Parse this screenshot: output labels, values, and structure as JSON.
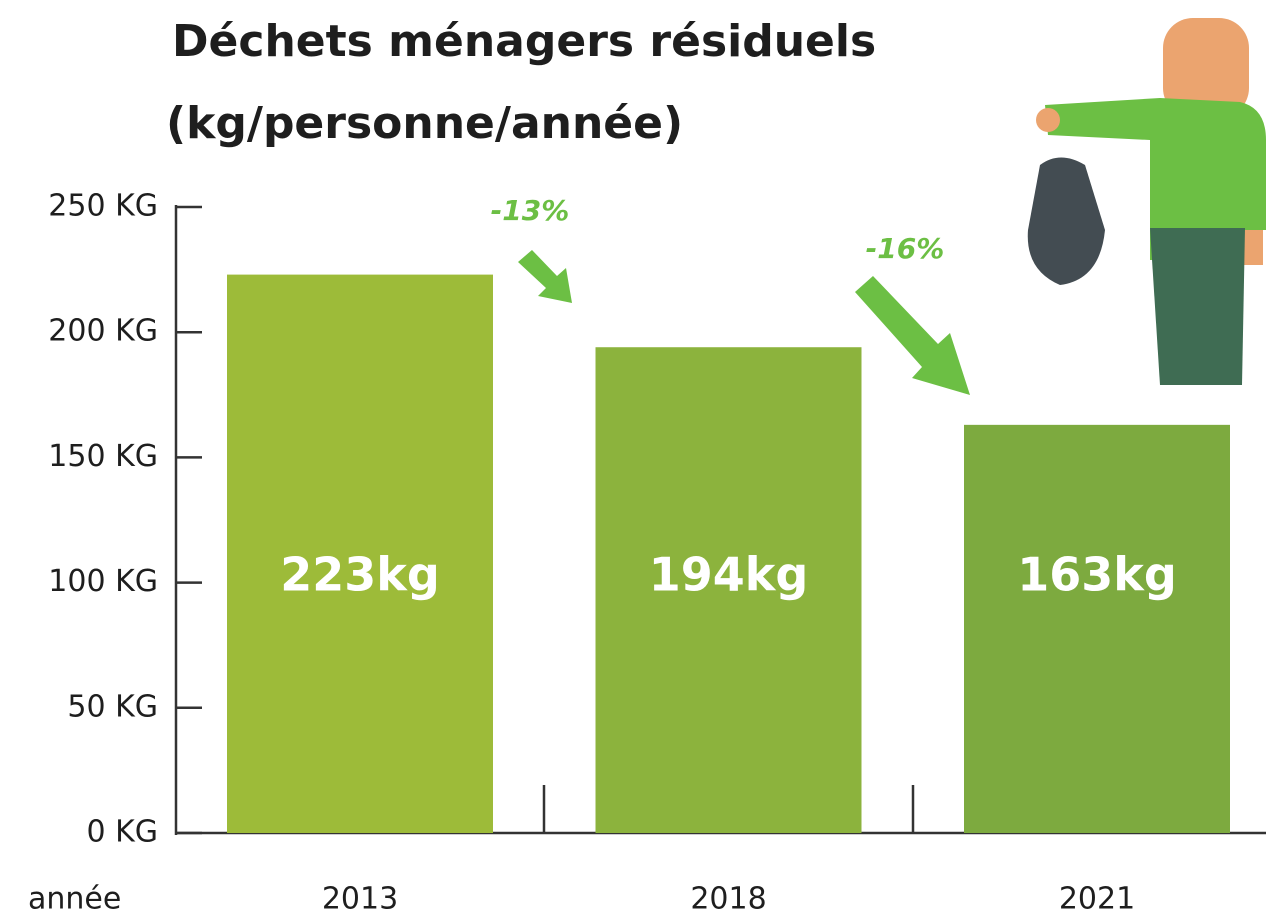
{
  "chart_data": {
    "type": "bar",
    "title": "Déchets ménagers résiduels",
    "subtitle": "(kg/personne/année)",
    "x_label": "année",
    "categories": [
      "2013",
      "2018",
      "2021"
    ],
    "values": [
      223,
      194,
      163
    ],
    "value_labels": [
      "223kg",
      "194kg",
      "163kg"
    ],
    "colors": [
      "#9dbb39",
      "#8cb33d",
      "#7daa3f"
    ],
    "ylim": [
      0,
      250
    ],
    "yticks": [
      {
        "value": 0,
        "label": "0 KG"
      },
      {
        "value": 50,
        "label": "50 KG"
      },
      {
        "value": 100,
        "label": "100 KG"
      },
      {
        "value": 150,
        "label": "150 KG"
      },
      {
        "value": 200,
        "label": "200 KG"
      },
      {
        "value": 250,
        "label": "250 KG"
      }
    ],
    "annotations": [
      "-13%",
      "-16%"
    ]
  }
}
